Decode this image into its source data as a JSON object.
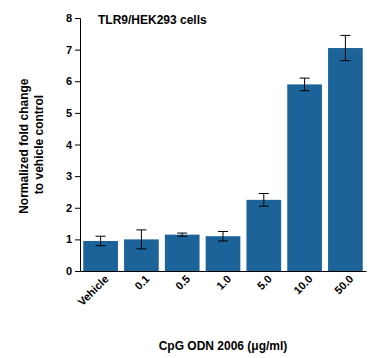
{
  "chart_data": {
    "type": "bar",
    "title": "TLR9/HEK293 cells",
    "x_label": "CpG ODN 2006 (μg/ml)",
    "y_label": "Normalized fold change to vehicle control",
    "categories": [
      "Vehicle",
      "0.1",
      "0.5",
      "1.0",
      "5.0",
      "10.0",
      "50.0"
    ],
    "values": [
      0.95,
      1.0,
      1.15,
      1.1,
      2.25,
      5.9,
      7.05
    ],
    "errors": [
      0.15,
      0.3,
      0.05,
      0.15,
      0.2,
      0.2,
      0.4
    ],
    "color": "#1c6399",
    "ylim": [
      0,
      8
    ],
    "yticks": [
      0,
      1,
      2,
      3,
      4,
      5,
      6,
      7,
      8
    ],
    "grid": false
  }
}
